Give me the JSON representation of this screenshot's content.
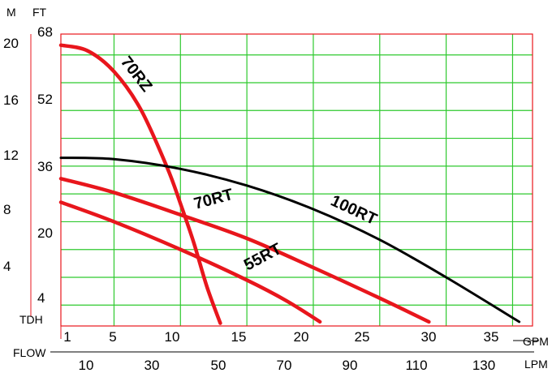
{
  "chart_data": {
    "type": "line",
    "units": {
      "head_m": "M",
      "head_ft": "FT",
      "flow_gpm": "GPM",
      "flow_lpm": "LPM"
    },
    "labels": {
      "head": "TDH",
      "flow": "FLOW"
    },
    "grid": true,
    "y_m_ticks": [
      "20",
      "16",
      "12",
      "8",
      "4"
    ],
    "y_ft_ticks": [
      "68",
      "52",
      "36",
      "20",
      "4"
    ],
    "x_gpm_ticks": [
      "1",
      "5",
      "10",
      "15",
      "20",
      "25",
      "30",
      "35"
    ],
    "x_lpm_ticks": [
      "10",
      "30",
      "50",
      "70",
      "90",
      "110",
      "130"
    ],
    "xlim_gpm": [
      1,
      36.5
    ],
    "ylim_m": [
      0,
      21
    ],
    "series": [
      {
        "name": "70RZ",
        "color": "#e8161c",
        "x_gpm": [
          1,
          3,
          5,
          7,
          9,
          10,
          11,
          12,
          13
        ],
        "y_m": [
          20.2,
          19.8,
          18.3,
          15.6,
          11.4,
          8.8,
          6.0,
          2.8,
          0.2
        ]
      },
      {
        "name": "70RT",
        "color": "#e8161c",
        "x_gpm": [
          1,
          5,
          10,
          15,
          20,
          25,
          28.7
        ],
        "y_m": [
          10.6,
          9.6,
          8.0,
          6.3,
          4.2,
          2.0,
          0.3
        ]
      },
      {
        "name": "55RT",
        "color": "#e8161c",
        "x_gpm": [
          1,
          5,
          10,
          15,
          18,
          20.5
        ],
        "y_m": [
          8.9,
          7.5,
          5.5,
          3.3,
          1.8,
          0.3
        ]
      },
      {
        "name": "100RT",
        "color": "#000000",
        "x_gpm": [
          1,
          5,
          10,
          15,
          20,
          25,
          30,
          35.5
        ],
        "y_m": [
          12.1,
          12.0,
          11.3,
          10.1,
          8.4,
          6.2,
          3.5,
          0.3
        ]
      }
    ]
  }
}
